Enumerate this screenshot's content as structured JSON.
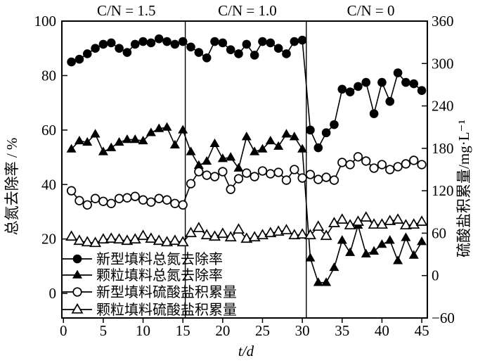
{
  "figure": {
    "background": "#ffffff",
    "ink_color": "#000000"
  },
  "chart_data": {
    "type": "line",
    "x_label": "t/d",
    "y_left_label": "总氮去除率 / %",
    "y_right_label": "硫酸盐积累量/mg·L⁻¹",
    "x_ticks": [
      0,
      5,
      10,
      15,
      20,
      25,
      30,
      35,
      40,
      45
    ],
    "y_left_ticks": [
      0,
      20,
      40,
      60,
      80,
      100
    ],
    "y_right_ticks": [
      -60,
      0,
      60,
      120,
      180,
      240,
      300,
      360
    ],
    "xlim": [
      -0.2,
      45.7
    ],
    "ylim_left": [
      -9,
      100
    ],
    "ylim_right": [
      -60,
      360
    ],
    "grid": false,
    "legend_position": "lower-left",
    "sections": [
      {
        "label": "C/N = 1.5",
        "t_center": 7.9
      },
      {
        "label": "C/N = 1.0",
        "t_center": 23.1
      },
      {
        "label": "C/N = 0",
        "t_center": 38.6
      }
    ],
    "dividers_t": [
      15.3,
      30.5
    ],
    "x": [
      1,
      2,
      3,
      4,
      5,
      6,
      7,
      8,
      9,
      10,
      11,
      12,
      13,
      14,
      15,
      16,
      17,
      18,
      19,
      20,
      21,
      22,
      23,
      24,
      25,
      26,
      27,
      28,
      29,
      30,
      31,
      32,
      33,
      34,
      35,
      36,
      37,
      38,
      39,
      40,
      41,
      42,
      43,
      44,
      45
    ],
    "series": [
      {
        "name": "新型填料总氮去除率",
        "marker": "circle-filled",
        "axis": "left",
        "values": [
          85,
          86,
          88,
          90,
          91.5,
          92,
          90,
          88.5,
          91.5,
          92.5,
          92,
          93.5,
          92.5,
          91.5,
          92.5,
          90.5,
          88.5,
          86.5,
          92.5,
          92,
          89.5,
          88,
          91.5,
          87.5,
          92.5,
          92,
          90,
          88,
          92.5,
          93,
          60,
          53.5,
          59,
          62,
          75,
          74,
          76,
          77.5,
          66,
          77.5,
          70.5,
          81,
          77.5,
          77,
          74.5
        ]
      },
      {
        "name": "颗粒填料总氮去除率",
        "marker": "triangle-filled",
        "axis": "left",
        "values": [
          53,
          56,
          55.5,
          58.5,
          52,
          53.5,
          55.5,
          56.5,
          56.5,
          56,
          59,
          60.5,
          61,
          54.5,
          60,
          52,
          47,
          48.5,
          55,
          49.5,
          50,
          46,
          57.5,
          52,
          53,
          56,
          54,
          58.5,
          57.5,
          53,
          13,
          4,
          4,
          9.5,
          19.5,
          15,
          25,
          14.5,
          15.5,
          18,
          19.5,
          12,
          20.5,
          14,
          19
        ]
      },
      {
        "name": "新型填料硫酸盐积累量",
        "marker": "circle-open",
        "axis": "right",
        "values": [
          120,
          106,
          100,
          109,
          105,
          102,
          109,
          110,
          112,
          107,
          104,
          109,
          107,
          102,
          100,
          130,
          147,
          142,
          140,
          147,
          122,
          137,
          145,
          140,
          148,
          144,
          146,
          135,
          150,
          138,
          143,
          136,
          139,
          135,
          160,
          157,
          168,
          162,
          152,
          157,
          150,
          154,
          158,
          163,
          157
        ]
      },
      {
        "name": "颗粒填料硫酸盐积累量",
        "marker": "triangle-open",
        "axis": "right",
        "values": [
          55,
          49,
          47,
          46,
          51,
          52,
          51,
          49,
          51,
          56,
          52,
          49,
          47,
          49,
          47,
          60,
          67,
          57,
          55,
          59,
          54,
          65,
          52,
          54,
          57,
          60,
          62,
          64,
          57,
          58,
          57,
          69,
          56,
          74,
          79,
          71,
          76,
          82,
          72,
          72,
          77,
          79,
          71,
          72,
          76
        ]
      }
    ]
  }
}
